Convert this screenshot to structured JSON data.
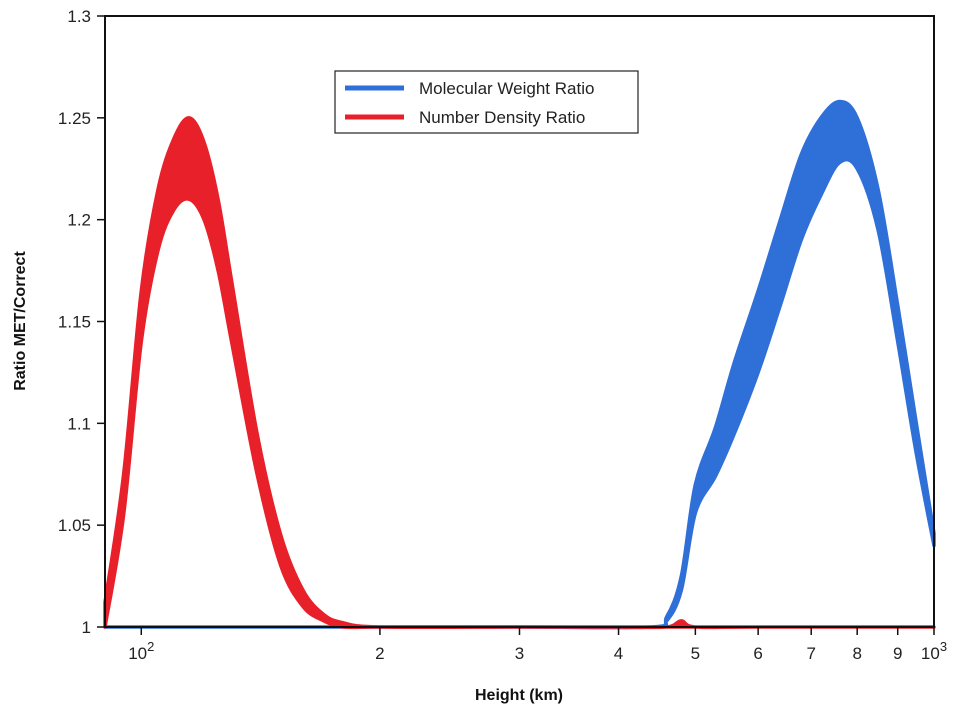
{
  "chart_data": {
    "type": "line",
    "title": "",
    "xlabel": "Height (km)",
    "ylabel": "Ratio MET/Correct",
    "x_scale": "log",
    "xlim": [
      90,
      1000
    ],
    "ylim": [
      1.0,
      1.3
    ],
    "grid": false,
    "legend_position": "top-center",
    "x_ticks": [
      {
        "value": 100,
        "base": "10",
        "exp": "2"
      },
      {
        "value": 200,
        "label": "2"
      },
      {
        "value": 300,
        "label": "3"
      },
      {
        "value": 400,
        "label": "4"
      },
      {
        "value": 500,
        "label": "5"
      },
      {
        "value": 600,
        "label": "6"
      },
      {
        "value": 700,
        "label": "7"
      },
      {
        "value": 800,
        "label": "8"
      },
      {
        "value": 900,
        "label": "9"
      },
      {
        "value": 1000,
        "base": "10",
        "exp": "3"
      }
    ],
    "y_ticks": [
      {
        "value": 1.0,
        "label": "1"
      },
      {
        "value": 1.05,
        "label": "1.05"
      },
      {
        "value": 1.1,
        "label": "1.1"
      },
      {
        "value": 1.15,
        "label": "1.15"
      },
      {
        "value": 1.2,
        "label": "1.2"
      },
      {
        "value": 1.25,
        "label": "1.25"
      },
      {
        "value": 1.3,
        "label": "1.3"
      }
    ],
    "series": [
      {
        "name": "Molecular Weight Ratio",
        "color": "#2f6fd8",
        "band": true,
        "x": [
          90,
          150,
          300,
          440,
          460,
          480,
          500,
          530,
          560,
          600,
          640,
          680,
          720,
          760,
          800,
          850,
          900,
          950,
          1000
        ],
        "lower": [
          1.0,
          1.0,
          1.0,
          1.0,
          1.003,
          1.018,
          1.056,
          1.074,
          1.095,
          1.125,
          1.158,
          1.19,
          1.212,
          1.228,
          1.225,
          1.195,
          1.14,
          1.085,
          1.04
        ],
        "upper": [
          1.0,
          1.0,
          1.0,
          1.0,
          1.005,
          1.025,
          1.07,
          1.098,
          1.13,
          1.165,
          1.2,
          1.232,
          1.25,
          1.258,
          1.25,
          1.215,
          1.158,
          1.1,
          1.046
        ]
      },
      {
        "name": "Number Density Ratio",
        "color": "#e8202a",
        "band": true,
        "x": [
          90,
          95,
          100,
          105,
          110,
          115,
          120,
          125,
          130,
          140,
          150,
          160,
          170,
          180,
          200,
          300,
          400,
          460,
          480,
          500,
          600,
          1000
        ],
        "lower": [
          1.0,
          1.055,
          1.14,
          1.185,
          1.205,
          1.21,
          1.2,
          1.175,
          1.14,
          1.075,
          1.03,
          1.01,
          1.003,
          1.0,
          1.0,
          1.0,
          1.0,
          1.0,
          1.0,
          1.0,
          1.0,
          1.0
        ],
        "upper": [
          1.012,
          1.075,
          1.165,
          1.215,
          1.24,
          1.25,
          1.238,
          1.21,
          1.17,
          1.095,
          1.045,
          1.018,
          1.006,
          1.002,
          1.0,
          1.0,
          1.0,
          1.0,
          1.003,
          1.0,
          1.0,
          1.0
        ]
      }
    ]
  }
}
